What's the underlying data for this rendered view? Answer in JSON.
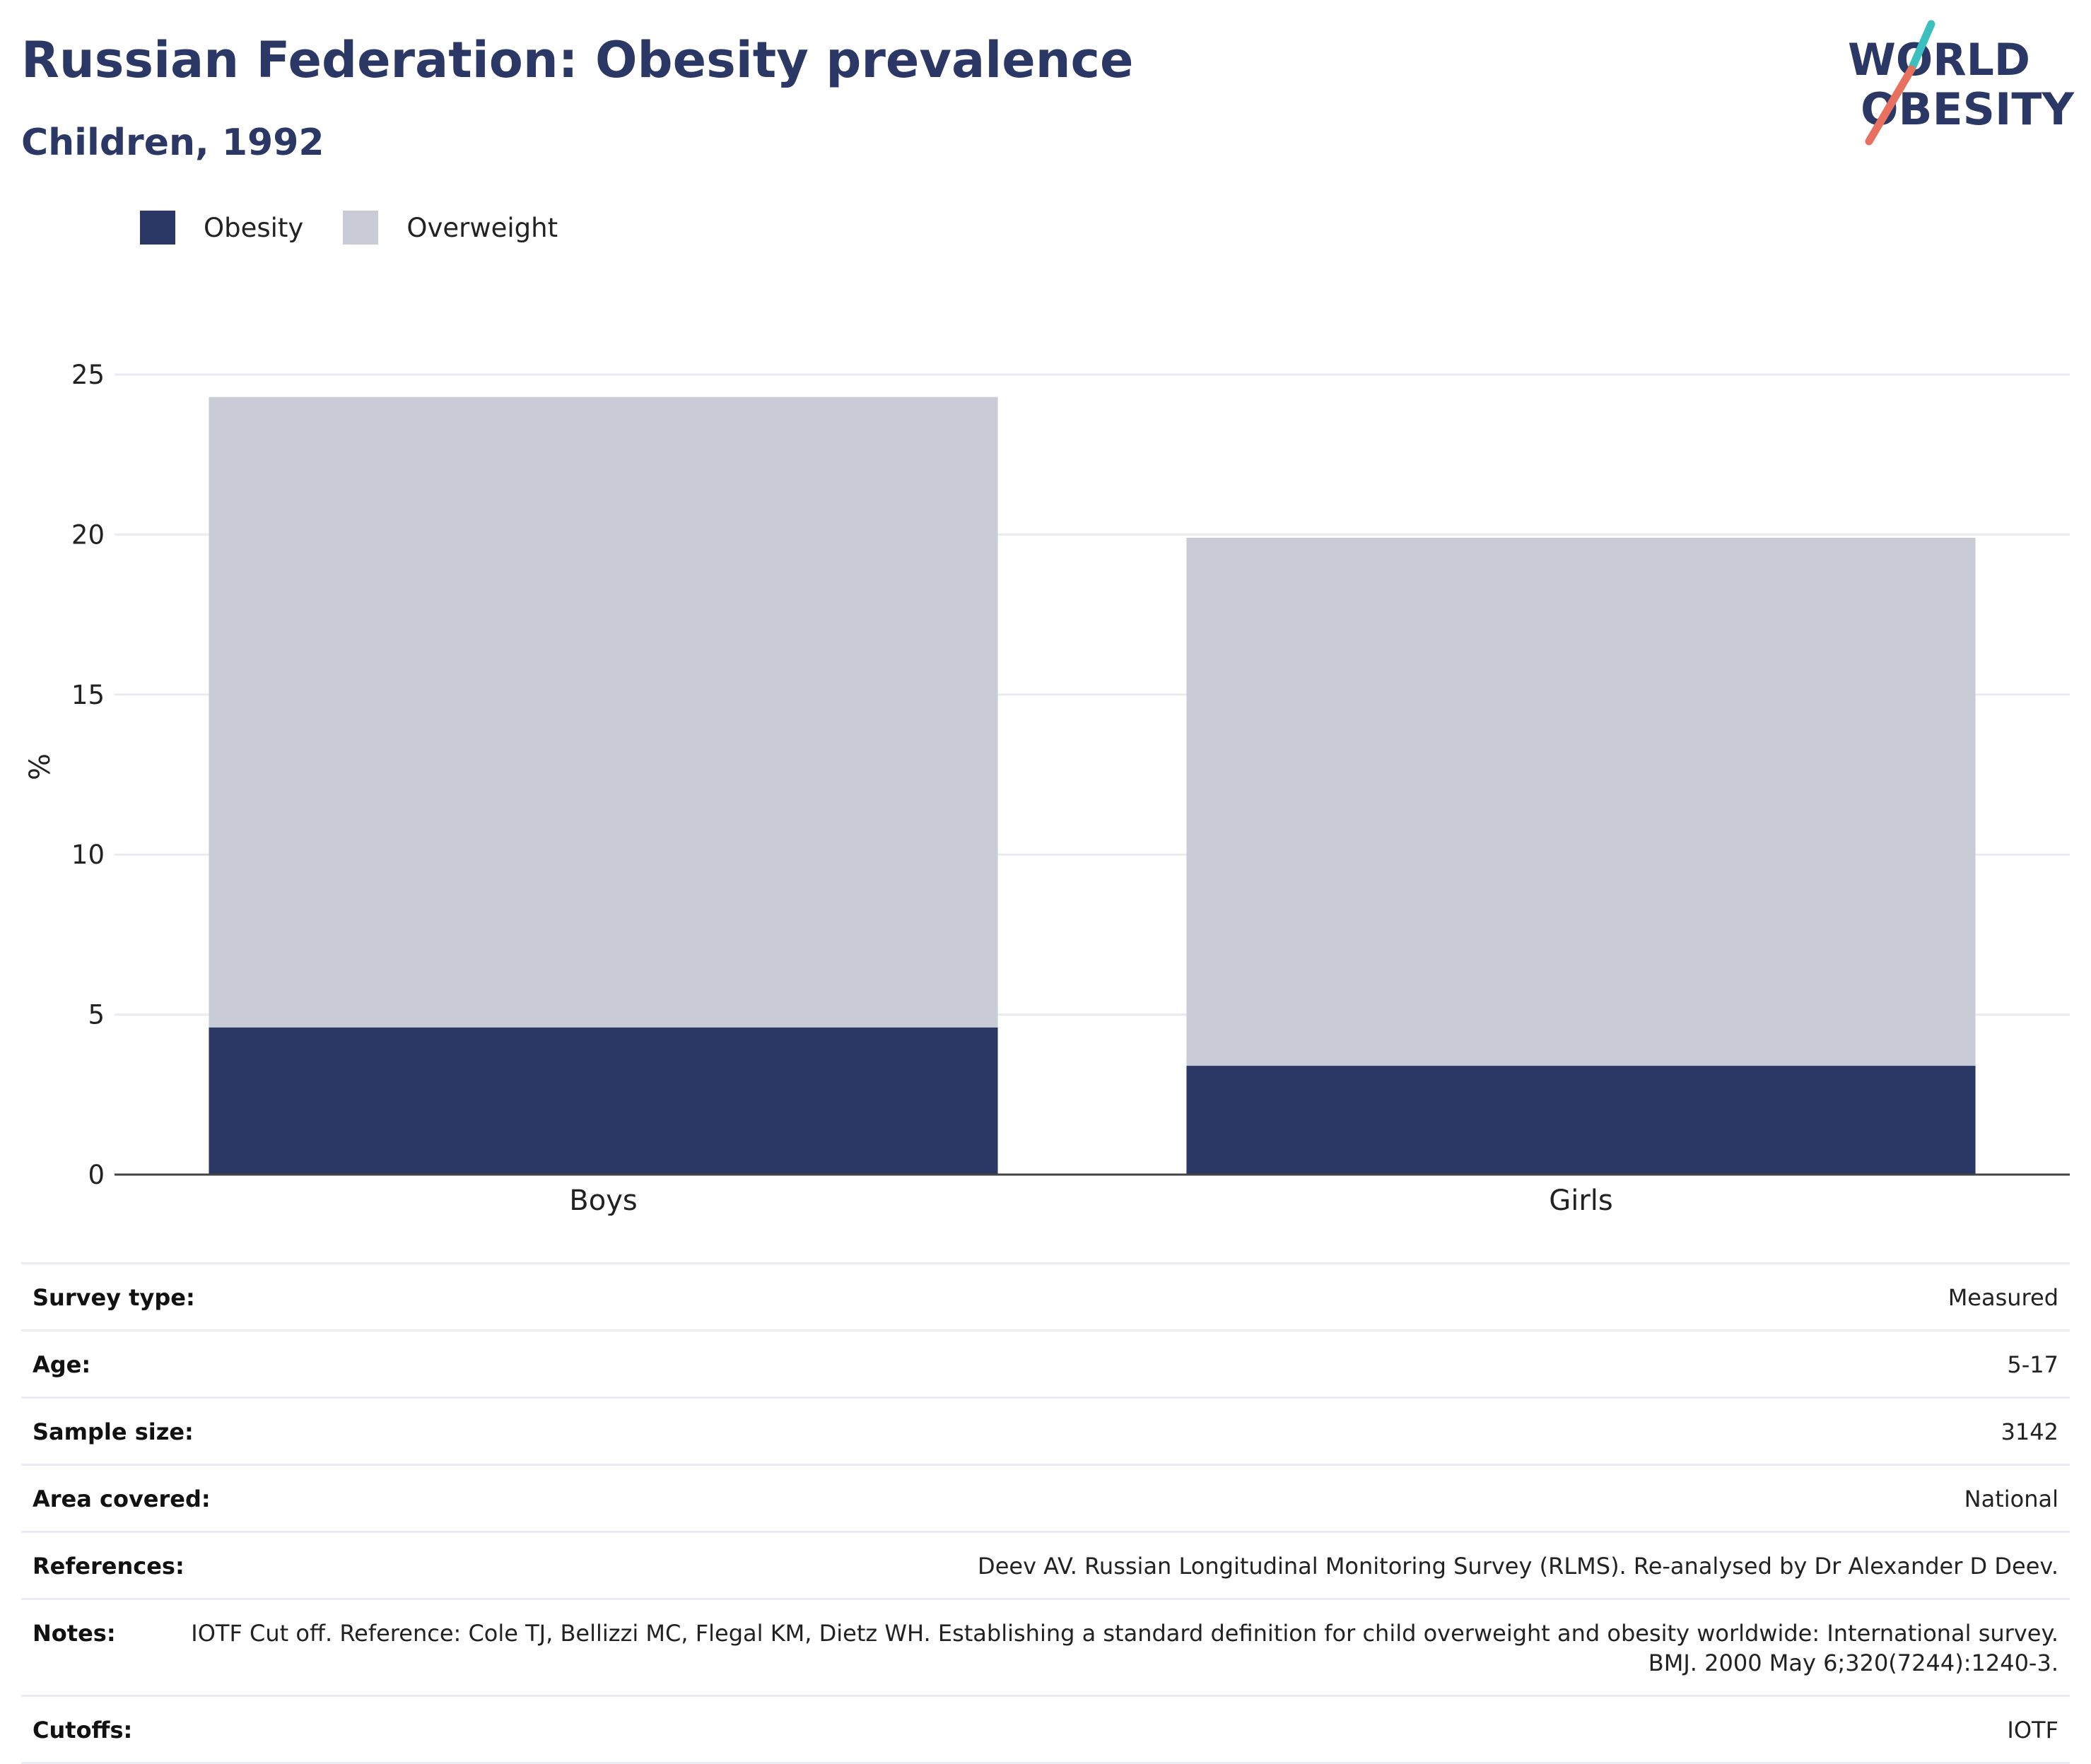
{
  "header": {
    "title": "Russian Federation: Obesity prevalence",
    "subtitle": "Children, 1992"
  },
  "logo": {
    "line1": "WORLD",
    "line2": "OBESITY",
    "colors": {
      "text": "#2b3765",
      "slash_top": "#3bbfbf",
      "slash_bottom": "#e8705f"
    }
  },
  "legend": [
    {
      "name": "Obesity",
      "color": "#2b3765"
    },
    {
      "name": "Overweight",
      "color": "#c9ccd7"
    }
  ],
  "chart_data": {
    "type": "bar",
    "stacked": true,
    "categories": [
      "Boys",
      "Girls"
    ],
    "series": [
      {
        "name": "Obesity",
        "values": [
          4.6,
          3.4
        ],
        "color": "#2b3765"
      },
      {
        "name": "Overweight",
        "values": [
          19.7,
          16.5
        ],
        "color": "#c9ccd7"
      }
    ],
    "ylabel": "%",
    "ylim": [
      0,
      25
    ],
    "yticks": [
      0,
      5,
      10,
      15,
      20,
      25
    ],
    "grid": true,
    "legend_position": "top-left"
  },
  "info": [
    {
      "label": "Survey type:",
      "value": "Measured"
    },
    {
      "label": "Age:",
      "value": "5-17"
    },
    {
      "label": "Sample size:",
      "value": "3142"
    },
    {
      "label": "Area covered:",
      "value": "National"
    },
    {
      "label": "References:",
      "value": "Deev AV. Russian Longitudinal Monitoring Survey (RLMS). Re-analysed by Dr Alexander D Deev."
    },
    {
      "label": "Notes:",
      "value": "IOTF Cut off. Reference: Cole TJ, Bellizzi MC, Flegal KM, Dietz WH. Establishing a standard definition for child overweight and obesity worldwide: International survey. BMJ. 2000 May 6;320(7244):1240-3."
    },
    {
      "label": "Cutoffs:",
      "value": "IOTF"
    }
  ]
}
